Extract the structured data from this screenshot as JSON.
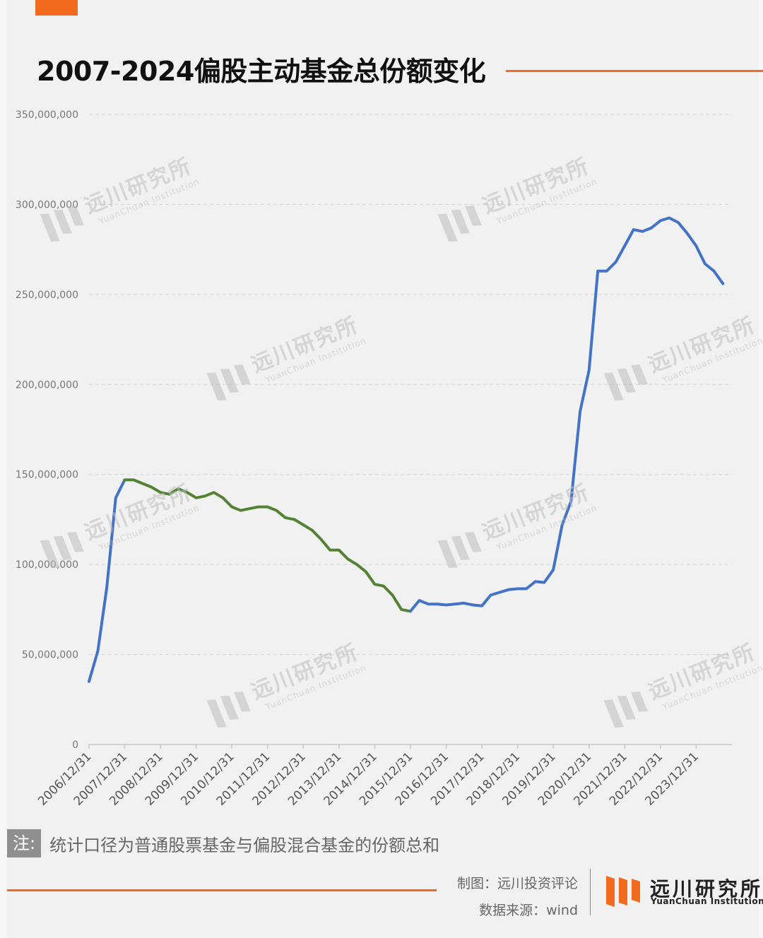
{
  "title": "2007-2024偏股主动基金总份额变化",
  "note": {
    "badge": "注:",
    "text": "统计口径为普通股票基金与偏股混合基金的份额总和"
  },
  "credits": {
    "made_by": "制图：远川投资评论",
    "source": "数据来源：wind"
  },
  "brand": {
    "name_cn": "远川研究所",
    "name_en": "YuanChuan  Institution"
  },
  "watermark": {
    "name_cn": "远川研究所",
    "name_en": "YuanChuan Institution"
  },
  "colors": {
    "accent": "#f26a1e",
    "series_blue": "#4472c4",
    "series_green": "#548235"
  },
  "chart_data": {
    "type": "line",
    "title": "2007-2024偏股主动基金总份额变化",
    "ylim": [
      0,
      350000000
    ],
    "yticks": [
      0,
      50000000,
      100000000,
      150000000,
      200000000,
      250000000,
      300000000,
      350000000
    ],
    "ytick_labels": [
      "0",
      "50,000,000",
      "100,000,000",
      "150,000,000",
      "200,000,000",
      "250,000,000",
      "300,000,000",
      "350,000,000"
    ],
    "xtick_labels": [
      "2006/12/31",
      "2007/12/31",
      "2008/12/31",
      "2009/12/31",
      "2010/12/31",
      "2011/12/31",
      "2012/12/31",
      "2013/12/31",
      "2014/12/31",
      "2015/12/31",
      "2016/12/31",
      "2017/12/31",
      "2018/12/31",
      "2019/12/31",
      "2020/12/31",
      "2021/12/31",
      "2022/12/31",
      "2023/12/31"
    ],
    "x": [
      "2006/12/31",
      "2007/03/31",
      "2007/06/30",
      "2007/09/30",
      "2007/12/31",
      "2008/03/31",
      "2008/06/30",
      "2008/09/30",
      "2008/12/31",
      "2009/03/31",
      "2009/06/30",
      "2009/09/30",
      "2009/12/31",
      "2010/03/31",
      "2010/06/30",
      "2010/09/30",
      "2010/12/31",
      "2011/03/31",
      "2011/06/30",
      "2011/09/30",
      "2011/12/31",
      "2012/03/31",
      "2012/06/30",
      "2012/09/30",
      "2012/12/31",
      "2013/03/31",
      "2013/06/30",
      "2013/09/30",
      "2013/12/31",
      "2014/03/31",
      "2014/06/30",
      "2014/09/30",
      "2014/12/31",
      "2015/03/31",
      "2015/06/30",
      "2015/09/30",
      "2015/12/31",
      "2016/03/31",
      "2016/06/30",
      "2016/09/30",
      "2016/12/31",
      "2017/03/31",
      "2017/06/30",
      "2017/09/30",
      "2017/12/31",
      "2018/03/31",
      "2018/06/30",
      "2018/09/30",
      "2018/12/31",
      "2019/03/31",
      "2019/06/30",
      "2019/09/30",
      "2019/12/31",
      "2020/03/31",
      "2020/06/30",
      "2020/09/30",
      "2020/12/31",
      "2021/03/31",
      "2021/06/30",
      "2021/09/30",
      "2021/12/31",
      "2022/03/31",
      "2022/06/30",
      "2022/09/30",
      "2022/12/31",
      "2023/03/31",
      "2023/06/30",
      "2023/09/30",
      "2023/12/31",
      "2024/03/31",
      "2024/06/30",
      "2024/09/30"
    ],
    "values": [
      35000000,
      52000000,
      87000000,
      137000000,
      147000000,
      147000000,
      145000000,
      143000000,
      140000000,
      139000000,
      142000000,
      140000000,
      137000000,
      138000000,
      140000000,
      137000000,
      132000000,
      130000000,
      131000000,
      132000000,
      132000000,
      130000000,
      126000000,
      125000000,
      122000000,
      119000000,
      114000000,
      108000000,
      108000000,
      103000000,
      100000000,
      96000000,
      89000000,
      88000000,
      83000000,
      75000000,
      74000000,
      80000000,
      78000000,
      78000000,
      77500000,
      78000000,
      78500000,
      77500000,
      77000000,
      83000000,
      84500000,
      86000000,
      86500000,
      86500000,
      90500000,
      90000000,
      97000000,
      122000000,
      135000000,
      185000000,
      208000000,
      263000000,
      263000000,
      268000000,
      277000000,
      286000000,
      285000000,
      287000000,
      291000000,
      292500000,
      290000000,
      284000000,
      277000000,
      267000000,
      263000000,
      256000000
    ],
    "segments": [
      {
        "color": "#4472c4",
        "from": "2006/12/31",
        "to": "2007/12/31"
      },
      {
        "color": "#548235",
        "from": "2007/12/31",
        "to": "2015/12/31"
      },
      {
        "color": "#4472c4",
        "from": "2015/12/31",
        "to": "2024/09/30"
      }
    ],
    "grid": true,
    "legend": "none"
  }
}
